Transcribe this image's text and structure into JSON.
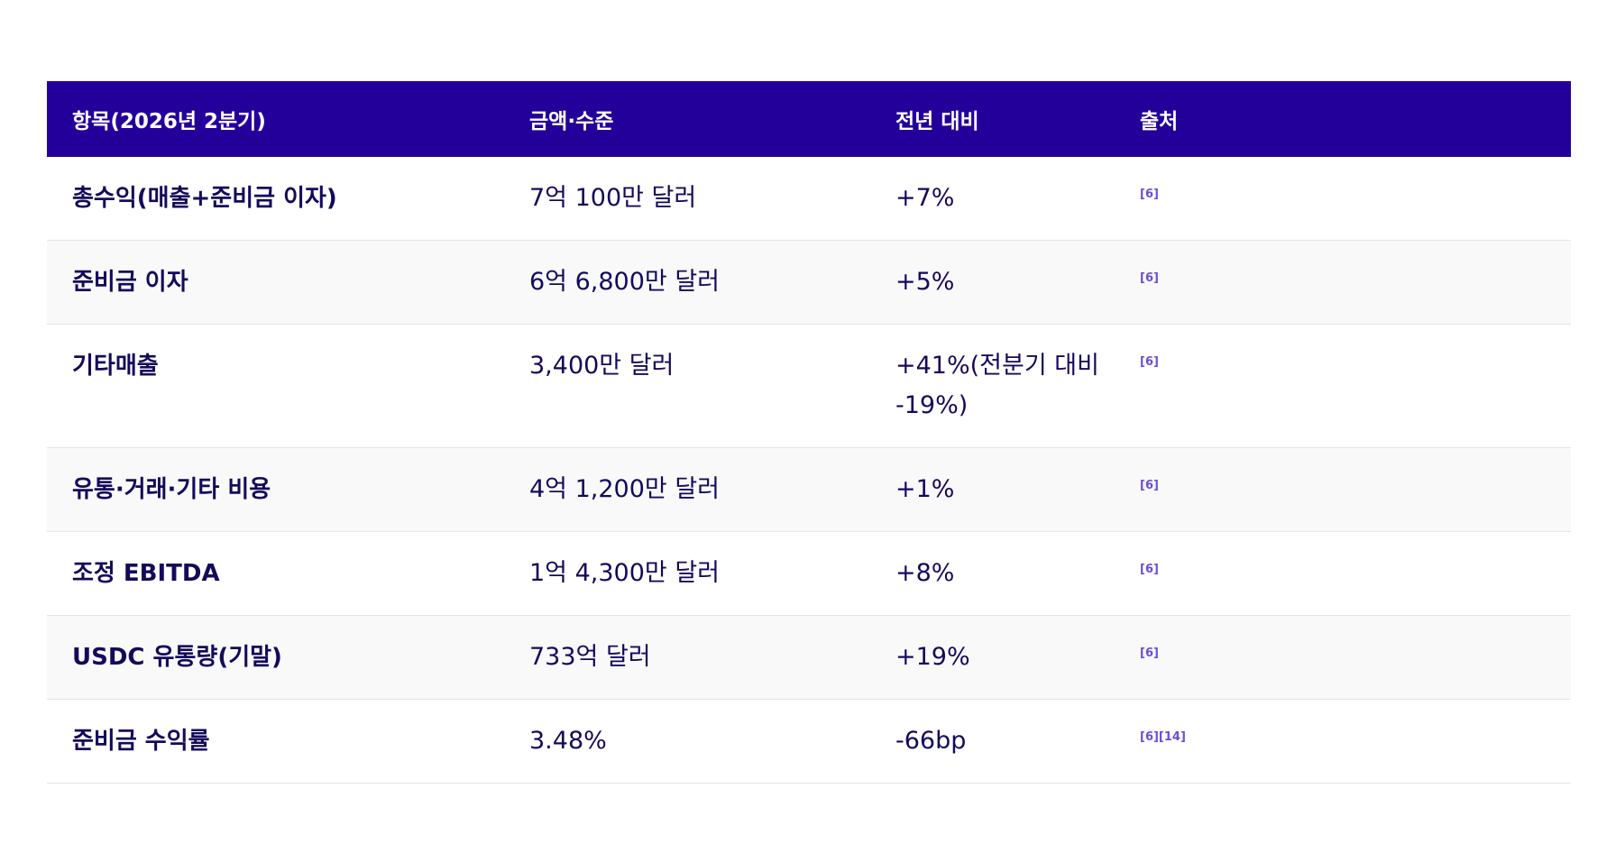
{
  "table": {
    "headers": [
      "항목(2026년 2분기)",
      "금액·수준",
      "전년 대비",
      "출처"
    ],
    "rows": [
      {
        "item": "총수익(매출+준비금 이자)",
        "amount": "7억 100만 달러",
        "yoy": "+7%",
        "source": "[6]"
      },
      {
        "item": "준비금 이자",
        "amount": "6억 6,800만 달러",
        "yoy": "+5%",
        "source": "[6]"
      },
      {
        "item": "기타매출",
        "amount": "3,400만 달러",
        "yoy": "+41%(전분기 대비 -19%)",
        "source": "[6]"
      },
      {
        "item": "유통·거래·기타 비용",
        "amount": "4억 1,200만 달러",
        "yoy": "+1%",
        "source": "[6]"
      },
      {
        "item": "조정 EBITDA",
        "amount": "1억 4,300만 달러",
        "yoy": "+8%",
        "source": "[6]"
      },
      {
        "item": "USDC 유통량(기말)",
        "amount": "733억 달러",
        "yoy": "+19%",
        "source": "[6]"
      },
      {
        "item": "준비금 수익률",
        "amount": "3.48%",
        "yoy": "-66bp",
        "source": "[6][14]"
      }
    ]
  },
  "colors": {
    "header_bg": "#24009b",
    "text": "#140a5a",
    "source_link": "#6a4ed8",
    "alt_row_bg": "#f9f9fa"
  }
}
